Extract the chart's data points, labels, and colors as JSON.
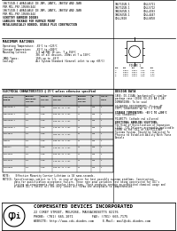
{
  "title_lines_left": [
    "1N5711UB-1 AVAILABLE IN JAM, JANTX, JANTXV AND JANS",
    "PER MIL-PRF-19500/444",
    "1N5712UB-1 AVAILABLE IN JAM, JANTX, JANTXV AND JANS",
    "PER MIL-PRF-19500/444",
    "SCHOTTKY BARRIER DIODES",
    "LEADLESS PACKAGE FOR SURFACE MOUNT",
    "METALLURGICALLY BONDED, DOUBLE PLUG CONSTRUCTION"
  ],
  "cross_ref": [
    [
      "1N5711UB-1",
      "CDLL5711"
    ],
    [
      "1N5712UB-1",
      "CDLL5712"
    ],
    [
      "1N6263UB-1",
      "CDLL4393"
    ],
    [
      "1N6263UB-1",
      "CDLL4447"
    ],
    [
      "CDLL2810",
      "CDLL6858"
    ]
  ],
  "max_ratings_title": "MAXIMUM RATINGS",
  "rating_lines": [
    "Operating Temperature: -65°C to +125°C",
    "Storage Temperature:   -65°C to +200°C",
    "Mounting Current:      1.0 mA MAX 10 sec, T ≤ 150°C",
    "                       30% of all devices. 250ms at T ≤ 150°C",
    "JANS Types:            150% up to -48°F",
    "Cooling:               Air System Standard (General inlet to cap +85°C)"
  ],
  "elec_title": "ELECTRICAL CHARACTERISTICS @ 25°C unless otherwise specified",
  "col_headers": [
    "TYPE\nPART\nNUMBER",
    "REVERSE\nBREAK-\nDOWN\nVOLTAGE",
    "FORWARD\nVOLTAGE\nDROP",
    "REVERSE\nCURRENT\nLEAKAGE",
    "MAXIMUM\nREVERSE\nVOLTAGE",
    "IR",
    "CAPACITANCE"
  ],
  "table_rows": [
    [
      "1N5711UB-1",
      "0.1",
      "1.00",
      "200 mV AT 1 mA",
      "70",
      "200",
      "1"
    ],
    [
      "1N5712UB-1",
      "0.1",
      "1.00",
      "350 mV AT 1 mA",
      "70",
      "200",
      "1"
    ],
    [
      "1N6263UB-1",
      "0.1",
      "1.00",
      "350 mV AT 1 mA",
      "40",
      "200",
      "1"
    ],
    [
      "1N6263UB-1",
      "0.1",
      "1.00",
      "410 mV AT 1 mA",
      "40",
      "200",
      "1"
    ],
    [
      "CDLL2810",
      "0.1",
      "2.00",
      "700 mV AT 1 mA",
      "20",
      "200",
      "1"
    ],
    [
      "1N6847",
      "0.1",
      "1.00",
      "380 mV AT 1 mA",
      "40",
      "200",
      "1"
    ],
    [
      "1N6847A",
      "0.1",
      "1.00",
      "410 mV AT 1 mA",
      "40",
      "200",
      "1"
    ],
    [
      "CDLL4393",
      "0.1",
      "1.00",
      "350 mV AT 1 mA",
      "40",
      "200",
      "1"
    ],
    [
      "CDLL4447",
      "0.1",
      "1.00",
      "410 mV AT 1 mA",
      "40",
      "200",
      "1"
    ],
    [
      "CDLL6858",
      "0.1",
      "1.00",
      "350 mV AT 1 mA",
      "40",
      "200",
      "1"
    ]
  ],
  "note1": "NOTE:    Effective Minority Carrier Lifetime is 10 nano-seconds.",
  "notice_lines": [
    "NOTICE: Specifications subject to 1.5, in case of desire for best possible supreme problems. Construction",
    "        data for qualification acceptance failure. These rate peak variables test being constructed for CDI's",
    "        listing or requirements that involve these firms. These products contain no prohibited chemical usage and",
    "        # above CDI's latest all the very latest all forms are acceptable to comprehension."
  ],
  "design_data_title": "DESIGN DATA",
  "design_lines": [
    "CASE: DO-213AA (mechanically similar",
    "package case (JEDEC DO-213 AA 1.2A)",
    "",
    "DIMENSIONS: To be said",
    "",
    "SOLDERING REQUIREMENTS: Piston AT",
    "150°C Condensate up to T = 0.020",
    "",
    "STORAGE TEMPERATURE: -65°C TO +200°C",
    "(CDI Standards)",
    "",
    "POLARITY: Cathode end silvered",
    "",
    "ADDITIONAL HANDLING SOLUTIONS:",
    "The Kind of Rectification of Expansion",
    "(JCE). CDI Delivers acceptable applicable",
    "TERMS to the CDLL of the MILITARY",
    "Systems System. Should be Subjected To",
    "Process to Establish Ability With These",
    "Denials"
  ],
  "figure_label": "FIGURE 1",
  "dim_table": [
    [
      "DIM",
      "MIN",
      "MAX",
      "MIN",
      "MAX"
    ],
    [
      "A",
      "0.060",
      "0.065",
      "1.52",
      "1.65"
    ],
    [
      "B",
      "0.085",
      "0.095",
      "2.16",
      "2.41"
    ],
    [
      "C",
      "0.055",
      "0.060",
      "1.40",
      "1.52"
    ],
    [
      "D",
      "0.026",
      "0.030",
      "0.66",
      "0.76"
    ]
  ],
  "company_name": "COMPENSATED DEVICES INCORPORATED",
  "company_addr": "22 COREY STREET, MELROSE, MASSACHUSETTS 02176",
  "company_phone": "PHONE: (781) 665-1071          FAX: (781) 665-7175",
  "company_web": "WEBSITE: http://www.cdi-diodes.com     E-Mail: mail@cdi-diodes.com",
  "bg_color": "#ffffff"
}
